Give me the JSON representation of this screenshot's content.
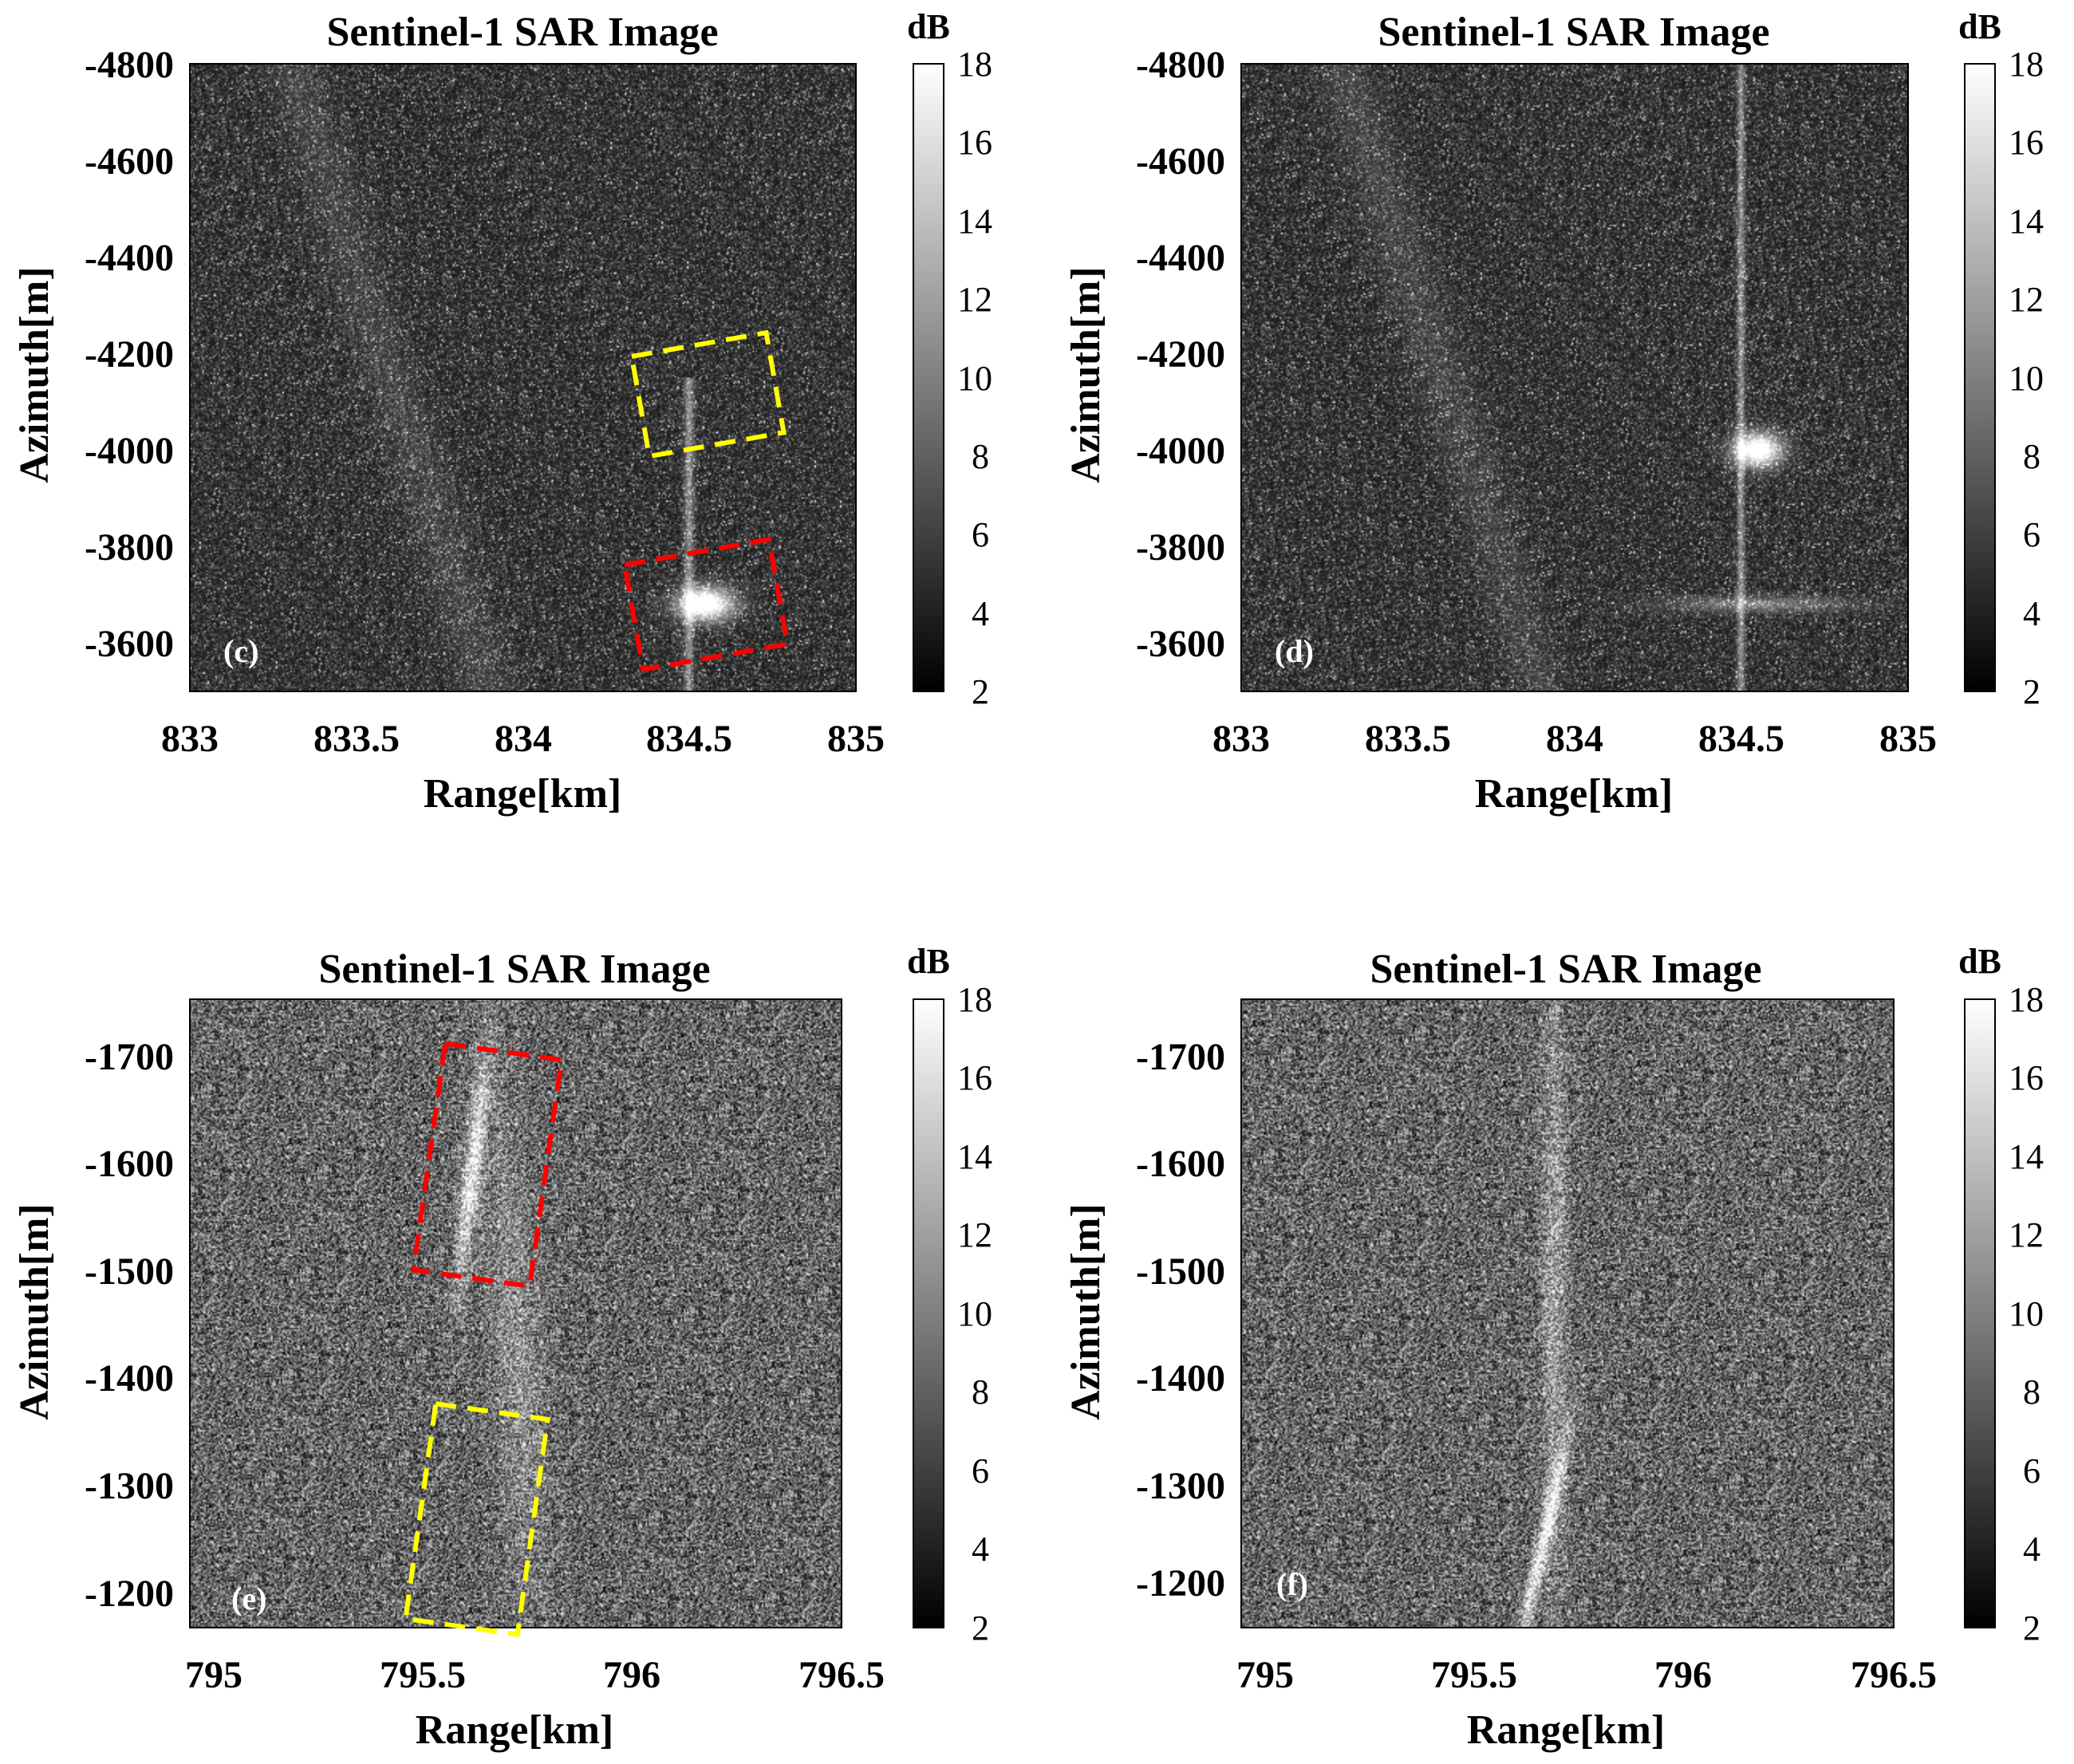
{
  "figure": {
    "colorbar_unit": "dB",
    "colormap": "gray",
    "background": "#ffffff"
  },
  "chart_data": [
    {
      "type": "heatmap",
      "panel_label": "(c)",
      "title": "Sentinel-1 SAR Image",
      "xlabel": "Range[km]",
      "ylabel": "Azimuth[m]",
      "xlim": [
        833,
        835
      ],
      "ylim": [
        -3500,
        -4800
      ],
      "xticks": [
        "833",
        "833.5",
        "834",
        "834.5",
        "835"
      ],
      "yticks": [
        "-4800",
        "-4600",
        "-4400",
        "-4200",
        "-4000",
        "-3800",
        "-3600"
      ],
      "clim": [
        2,
        18
      ],
      "colorbar_ticks": [
        "2",
        "4",
        "6",
        "8",
        "10",
        "12",
        "14",
        "16",
        "18"
      ],
      "base_level_db": 3.5,
      "highlight_boxes": [
        {
          "color": "#ffff00",
          "style": "dashed",
          "range_km": [
            834.35,
            834.76
          ],
          "azimuth_m": [
            -4220,
            -4010
          ]
        },
        {
          "color": "#ff0000",
          "style": "dashed",
          "range_km": [
            834.33,
            834.77
          ],
          "azimuth_m": [
            -3790,
            -3570
          ]
        }
      ]
    },
    {
      "type": "heatmap",
      "panel_label": "(d)",
      "title": "Sentinel-1 SAR Image",
      "xlabel": "Range[km]",
      "ylabel": "Azimuth[m]",
      "xlim": [
        833,
        835
      ],
      "ylim": [
        -3500,
        -4800
      ],
      "xticks": [
        "833",
        "833.5",
        "834",
        "834.5",
        "835"
      ],
      "yticks": [
        "-4800",
        "-4600",
        "-4400",
        "-4200",
        "-4000",
        "-3800",
        "-3600"
      ],
      "clim": [
        2,
        18
      ],
      "colorbar_ticks": [
        "2",
        "4",
        "6",
        "8",
        "10",
        "12",
        "14",
        "16",
        "18"
      ],
      "base_level_db": 3.5,
      "highlight_boxes": []
    },
    {
      "type": "heatmap",
      "panel_label": "(e)",
      "title": "Sentinel-1 SAR Image",
      "xlabel": "Range[km]",
      "ylabel": "Azimuth[m]",
      "xlim": [
        795,
        796.5
      ],
      "ylim": [
        -1200,
        -1750
      ],
      "xticks": [
        "795",
        "795.5",
        "796",
        "796.5"
      ],
      "yticks": [
        "-1700",
        "-1600",
        "-1500",
        "-1400",
        "-1300",
        "-1200"
      ],
      "clim": [
        2,
        18
      ],
      "colorbar_ticks": [
        "2",
        "4",
        "6",
        "8",
        "10",
        "12",
        "14",
        "16",
        "18"
      ],
      "base_level_db": 7,
      "highlight_boxes": [
        {
          "color": "#ff0000",
          "style": "dashed",
          "range_km": [
            795.55,
            795.82
          ],
          "azimuth_m": [
            -1705,
            -1505
          ]
        },
        {
          "color": "#ffff00",
          "style": "dashed",
          "range_km": [
            795.53,
            795.79
          ],
          "azimuth_m": [
            -1390,
            -1200
          ]
        }
      ]
    },
    {
      "type": "heatmap",
      "panel_label": "(f)",
      "title": "Sentinel-1 SAR Image",
      "xlabel": "Range[km]",
      "ylabel": "Azimuth[m]",
      "xlim": [
        795,
        796.5
      ],
      "ylim": [
        -1200,
        -1750
      ],
      "xticks": [
        "795",
        "795.5",
        "796",
        "796.5"
      ],
      "yticks": [
        "-1700",
        "-1600",
        "-1500",
        "-1400",
        "-1300",
        "-1200"
      ],
      "clim": [
        2,
        18
      ],
      "colorbar_ticks": [
        "2",
        "4",
        "6",
        "8",
        "10",
        "12",
        "14",
        "16",
        "18"
      ],
      "base_level_db": 7,
      "highlight_boxes": []
    }
  ]
}
